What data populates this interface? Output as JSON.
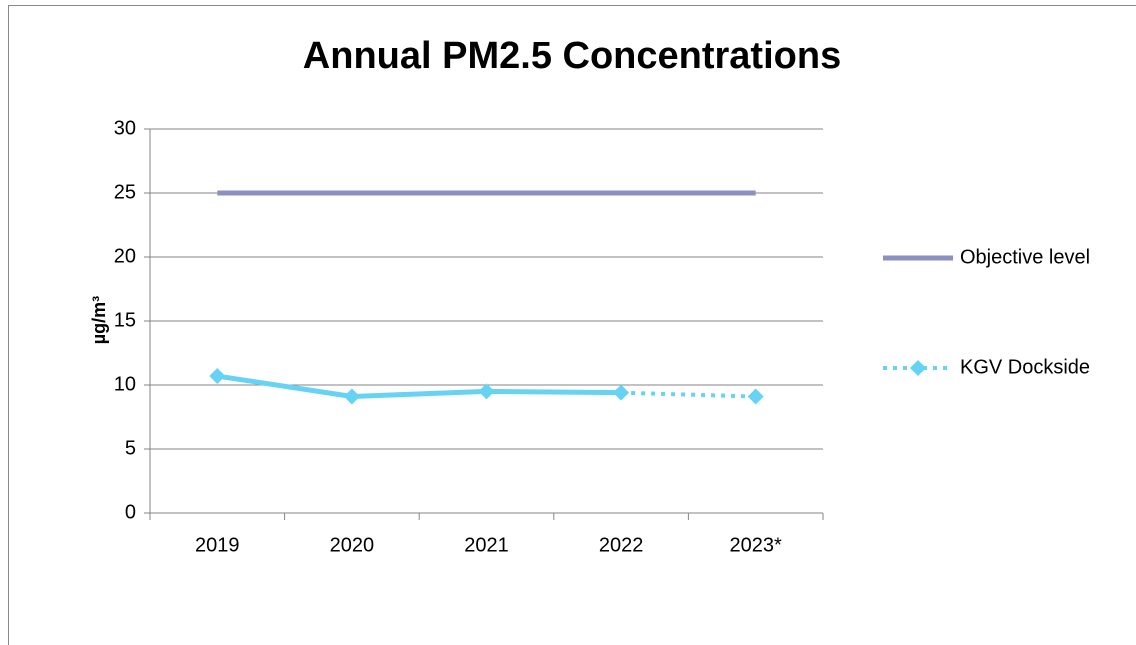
{
  "chart_data": {
    "type": "line",
    "title": "Annual PM2.5 Concentrations",
    "y_label": "µg/m³",
    "categories": [
      "2019",
      "2020",
      "2021",
      "2022",
      "2023*"
    ],
    "series": [
      {
        "name": "Objective level",
        "color": "#8b8fc2",
        "values": [
          25,
          25,
          25,
          25,
          25
        ],
        "markers": false,
        "dotted_last_segment": false
      },
      {
        "name": "KGV Dockside",
        "color": "#66d3f5",
        "values": [
          10.7,
          9.1,
          9.5,
          9.4,
          9.1
        ],
        "markers": true,
        "dotted_last_segment": true
      }
    ],
    "ylim": [
      0,
      30
    ],
    "yticks": [
      0,
      5,
      10,
      15,
      20,
      25,
      30
    ],
    "grid": true,
    "legend": "right"
  }
}
